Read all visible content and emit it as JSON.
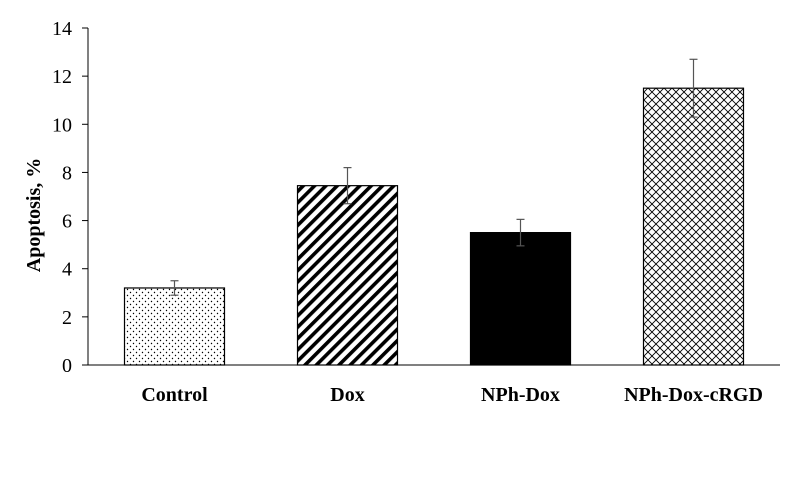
{
  "chart_data": {
    "type": "bar",
    "title": "",
    "xlabel": "",
    "ylabel": "Apoptosis,  %",
    "ylim": [
      0,
      14
    ],
    "yticks": [
      0,
      2,
      4,
      6,
      8,
      10,
      12,
      14
    ],
    "grid": false,
    "legend": "none",
    "categories": [
      "Control",
      "Dox",
      "NPh-Dox",
      "NPh-Dox-cRGD"
    ],
    "values": [
      3.2,
      7.45,
      5.5,
      11.5
    ],
    "errors": [
      0.3,
      0.75,
      0.55,
      1.2
    ],
    "patterns": [
      "dots",
      "diagonal-lines",
      "solid",
      "crosshatch"
    ],
    "colors": {
      "bar_fill": "#000000",
      "bar_stroke": "#000000",
      "error_bar": "#555555",
      "background": "#ffffff"
    }
  }
}
